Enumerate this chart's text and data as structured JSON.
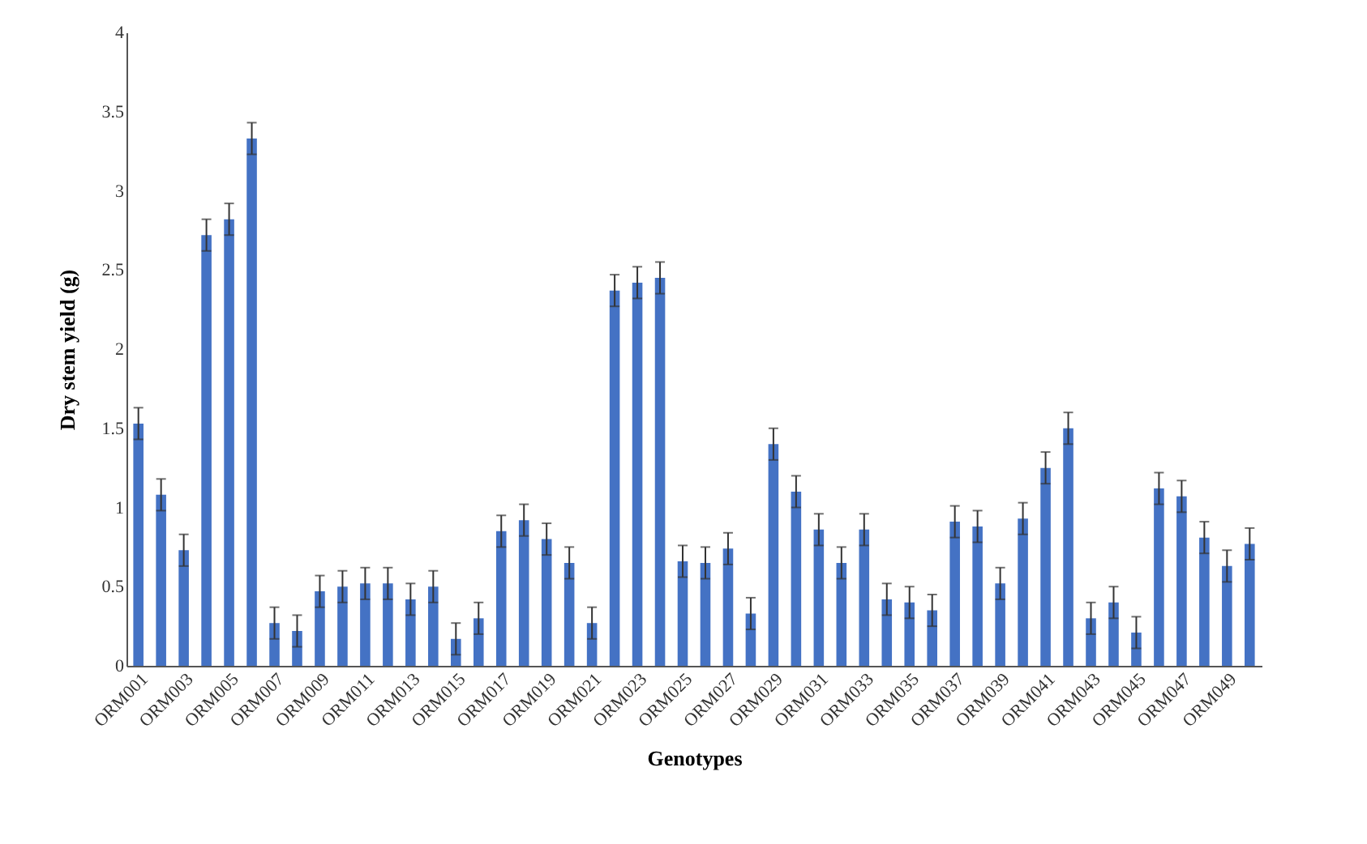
{
  "chart_data": {
    "type": "bar",
    "xlabel": "Genotypes",
    "ylabel": "Dry stem yield (g)",
    "categories": [
      "ORM001",
      null,
      "ORM003",
      null,
      "ORM005",
      null,
      "ORM007",
      null,
      "ORM009",
      null,
      "ORM011",
      null,
      "ORM013",
      null,
      "ORM015",
      null,
      "ORM017",
      null,
      "ORM019",
      null,
      "ORM021",
      null,
      "ORM023",
      null,
      "ORM025",
      null,
      "ORM027",
      null,
      "ORM029",
      null,
      "ORM031",
      null,
      "ORM033",
      null,
      "ORM035",
      null,
      "ORM037",
      null,
      "ORM039",
      null,
      "ORM041",
      null,
      "ORM043",
      null,
      "ORM045",
      null,
      "ORM047",
      null,
      "ORM049",
      null
    ],
    "values": [
      1.53,
      1.08,
      0.73,
      2.72,
      2.82,
      3.33,
      0.27,
      0.22,
      0.47,
      0.5,
      0.52,
      0.52,
      0.42,
      0.5,
      0.17,
      0.3,
      0.85,
      0.92,
      0.8,
      0.65,
      0.27,
      2.37,
      2.42,
      2.45,
      0.66,
      0.65,
      0.74,
      0.33,
      1.4,
      1.1,
      0.86,
      0.65,
      0.86,
      0.42,
      0.4,
      0.35,
      0.91,
      0.88,
      0.52,
      0.93,
      1.25,
      1.5,
      0.3,
      0.4,
      0.21,
      1.12,
      1.07,
      0.81,
      0.63,
      0.77
    ],
    "errors": [
      0.1,
      0.1,
      0.1,
      0.1,
      0.1,
      0.1,
      0.1,
      0.1,
      0.1,
      0.1,
      0.1,
      0.1,
      0.1,
      0.1,
      0.1,
      0.1,
      0.1,
      0.1,
      0.1,
      0.1,
      0.1,
      0.1,
      0.1,
      0.1,
      0.1,
      0.1,
      0.1,
      0.1,
      0.1,
      0.1,
      0.1,
      0.1,
      0.1,
      0.1,
      0.1,
      0.1,
      0.1,
      0.1,
      0.1,
      0.1,
      0.1,
      0.1,
      0.1,
      0.1,
      0.1,
      0.1,
      0.1,
      0.1,
      0.1,
      0.1
    ],
    "color": "#4472c4",
    "ylim": [
      0,
      4
    ],
    "yticks": [
      0,
      0.5,
      1,
      1.5,
      2,
      2.5,
      3,
      3.5,
      4
    ],
    "grid": false
  }
}
